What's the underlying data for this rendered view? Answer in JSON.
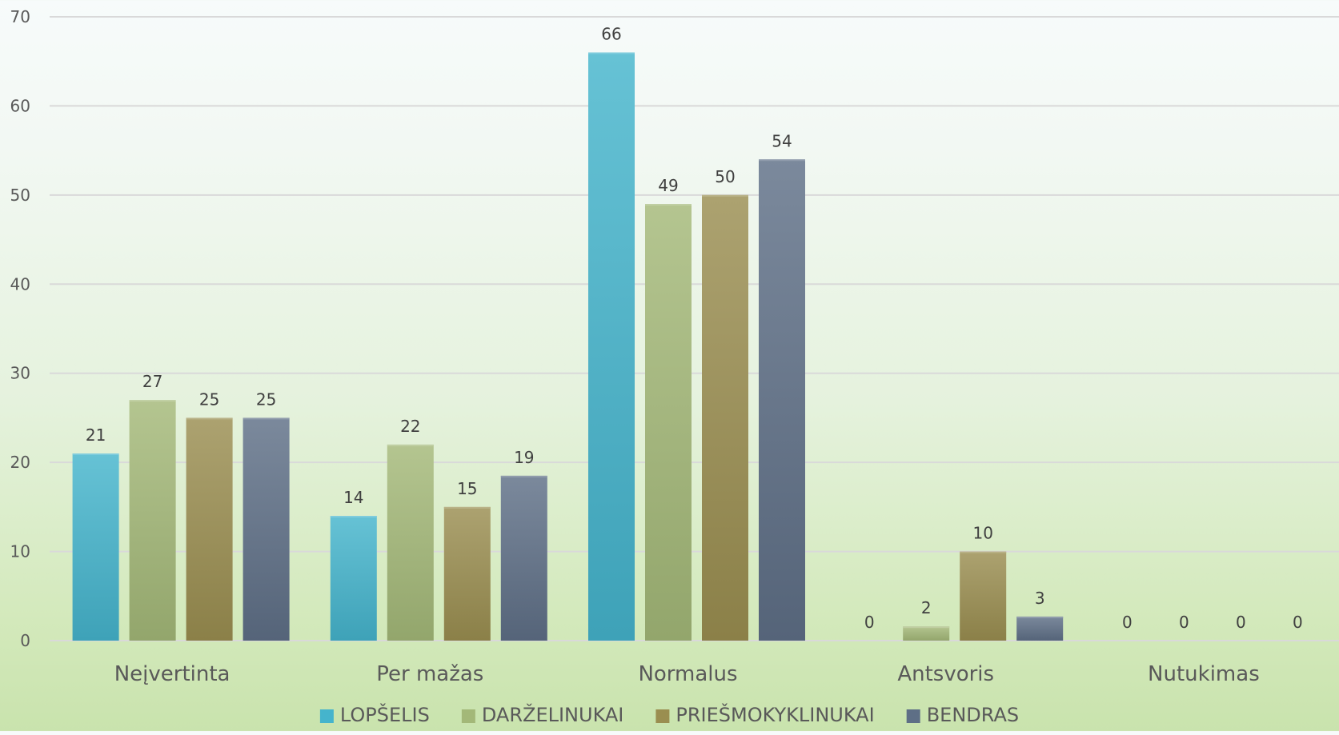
{
  "chart_data": {
    "type": "bar",
    "categories": [
      "Neįvertinta",
      "Per mažas",
      "Normalus",
      "Antsvoris",
      "Nutukimas"
    ],
    "series": [
      {
        "name": "LOPŠELIS",
        "values": [
          21,
          14,
          66,
          0,
          0
        ],
        "labels": [
          "21",
          "14",
          "66",
          "0",
          "0"
        ],
        "color": "#45b4cc"
      },
      {
        "name": "DARŽELINUKAI",
        "values": [
          27,
          22,
          49,
          1.6,
          0
        ],
        "labels": [
          "27",
          "22",
          "49",
          "2",
          "0"
        ],
        "color": "#a3b878"
      },
      {
        "name": "PRIEŠMOKYKLINUKAI",
        "values": [
          25,
          15,
          50,
          10,
          0
        ],
        "labels": [
          "25",
          "15",
          "50",
          "10",
          "0"
        ],
        "color": "#9a8e50"
      },
      {
        "name": "BENDRAS",
        "values": [
          25,
          18.5,
          54,
          2.7,
          0
        ],
        "labels": [
          "25",
          "19",
          "54",
          "3",
          "0"
        ],
        "color": "#5e6f86"
      }
    ],
    "y_ticks": [
      "0",
      "10",
      "20",
      "30",
      "40",
      "50",
      "60",
      "70"
    ],
    "ylim": [
      0,
      70
    ],
    "grid": true,
    "legend_position": "bottom"
  }
}
